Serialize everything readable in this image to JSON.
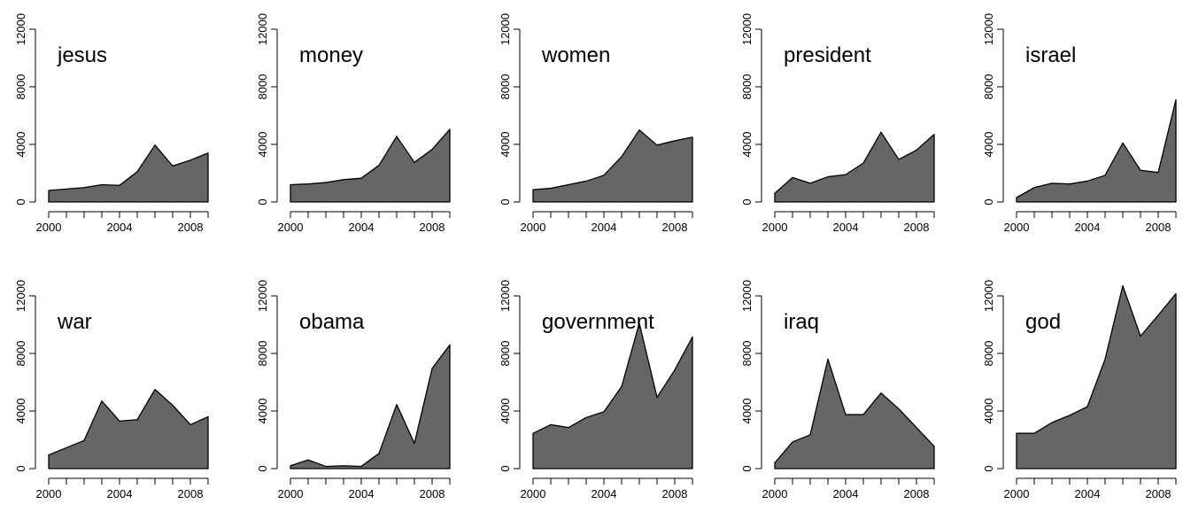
{
  "style": {
    "area_fill": "#666666",
    "stroke": "#000000",
    "background": "#ffffff"
  },
  "chart_data": [
    {
      "type": "area",
      "title": "jesus",
      "x": [
        2000,
        2001,
        2002,
        2003,
        2004,
        2005,
        2006,
        2007,
        2008,
        2009
      ],
      "values": [
        800,
        900,
        1000,
        1200,
        1150,
        2100,
        3950,
        2500,
        2900,
        3400
      ],
      "xticks": [
        "2000",
        "2004",
        "2008"
      ],
      "yticks": [
        "0",
        "4000",
        "8000",
        "12000"
      ],
      "xlim": [
        2000,
        2009
      ],
      "ylim": [
        0,
        12000
      ]
    },
    {
      "type": "area",
      "title": "money",
      "x": [
        2000,
        2001,
        2002,
        2003,
        2004,
        2005,
        2006,
        2007,
        2008,
        2009
      ],
      "values": [
        1200,
        1250,
        1350,
        1550,
        1650,
        2550,
        4550,
        2750,
        3650,
        5050
      ],
      "xticks": [
        "2000",
        "2004",
        "2008"
      ],
      "yticks": [
        "0",
        "4000",
        "8000",
        "12000"
      ],
      "xlim": [
        2000,
        2009
      ],
      "ylim": [
        0,
        12000
      ]
    },
    {
      "type": "area",
      "title": "women",
      "x": [
        2000,
        2001,
        2002,
        2003,
        2004,
        2005,
        2006,
        2007,
        2008,
        2009
      ],
      "values": [
        850,
        950,
        1200,
        1450,
        1850,
        3150,
        5000,
        3950,
        4250,
        4500
      ],
      "xticks": [
        "2000",
        "2004",
        "2008"
      ],
      "yticks": [
        "0",
        "4000",
        "8000",
        "12000"
      ],
      "xlim": [
        2000,
        2009
      ],
      "ylim": [
        0,
        12000
      ]
    },
    {
      "type": "area",
      "title": "president",
      "x": [
        2000,
        2001,
        2002,
        2003,
        2004,
        2005,
        2006,
        2007,
        2008,
        2009
      ],
      "values": [
        600,
        1700,
        1300,
        1750,
        1900,
        2700,
        4850,
        2950,
        3600,
        4700
      ],
      "xticks": [
        "2000",
        "2004",
        "2008"
      ],
      "yticks": [
        "0",
        "4000",
        "8000",
        "12000"
      ],
      "xlim": [
        2000,
        2009
      ],
      "ylim": [
        0,
        12000
      ]
    },
    {
      "type": "area",
      "title": "israel",
      "x": [
        2000,
        2001,
        2002,
        2003,
        2004,
        2005,
        2006,
        2007,
        2008,
        2009
      ],
      "values": [
        300,
        1000,
        1300,
        1250,
        1450,
        1850,
        4100,
        2200,
        2050,
        7100
      ],
      "xticks": [
        "2000",
        "2004",
        "2008"
      ],
      "yticks": [
        "0",
        "4000",
        "8000",
        "12000"
      ],
      "xlim": [
        2000,
        2009
      ],
      "ylim": [
        0,
        12000
      ]
    },
    {
      "type": "area",
      "title": "war",
      "x": [
        2000,
        2001,
        2002,
        2003,
        2004,
        2005,
        2006,
        2007,
        2008,
        2009
      ],
      "values": [
        950,
        1450,
        1950,
        4700,
        3300,
        3400,
        5500,
        4400,
        3050,
        3600
      ],
      "xticks": [
        "2000",
        "2004",
        "2008"
      ],
      "yticks": [
        "0",
        "4000",
        "8000",
        "12000"
      ],
      "xlim": [
        2000,
        2009
      ],
      "ylim": [
        0,
        12000
      ]
    },
    {
      "type": "area",
      "title": "obama",
      "x": [
        2000,
        2001,
        2002,
        2003,
        2004,
        2005,
        2006,
        2007,
        2008,
        2009
      ],
      "values": [
        200,
        600,
        150,
        200,
        150,
        1050,
        4450,
        1750,
        6950,
        8600
      ],
      "xticks": [
        "2000",
        "2004",
        "2008"
      ],
      "yticks": [
        "0",
        "4000",
        "8000",
        "12000"
      ],
      "xlim": [
        2000,
        2009
      ],
      "ylim": [
        0,
        12000
      ]
    },
    {
      "type": "area",
      "title": "government",
      "x": [
        2000,
        2001,
        2002,
        2003,
        2004,
        2005,
        2006,
        2007,
        2008,
        2009
      ],
      "values": [
        2450,
        3050,
        2850,
        3550,
        3950,
        5700,
        10100,
        4950,
        6850,
        9150
      ],
      "xticks": [
        "2000",
        "2004",
        "2008"
      ],
      "yticks": [
        "0",
        "4000",
        "8000",
        "12000"
      ],
      "xlim": [
        2000,
        2009
      ],
      "ylim": [
        0,
        12000
      ]
    },
    {
      "type": "area",
      "title": "iraq",
      "x": [
        2000,
        2001,
        2002,
        2003,
        2004,
        2005,
        2006,
        2007,
        2008,
        2009
      ],
      "values": [
        400,
        1850,
        2350,
        7600,
        3750,
        3750,
        5250,
        4150,
        2850,
        1550
      ],
      "xticks": [
        "2000",
        "2004",
        "2008"
      ],
      "yticks": [
        "0",
        "4000",
        "8000",
        "12000"
      ],
      "xlim": [
        2000,
        2009
      ],
      "ylim": [
        0,
        12000
      ]
    },
    {
      "type": "area",
      "title": "god",
      "x": [
        2000,
        2001,
        2002,
        2003,
        2004,
        2005,
        2006,
        2007,
        2008,
        2009
      ],
      "values": [
        2450,
        2450,
        3200,
        3700,
        4300,
        7600,
        12700,
        9200,
        10650,
        12150
      ],
      "xticks": [
        "2000",
        "2004",
        "2008"
      ],
      "yticks": [
        "0",
        "4000",
        "8000",
        "12000"
      ],
      "xlim": [
        2000,
        2009
      ],
      "ylim": [
        0,
        12000
      ]
    }
  ]
}
